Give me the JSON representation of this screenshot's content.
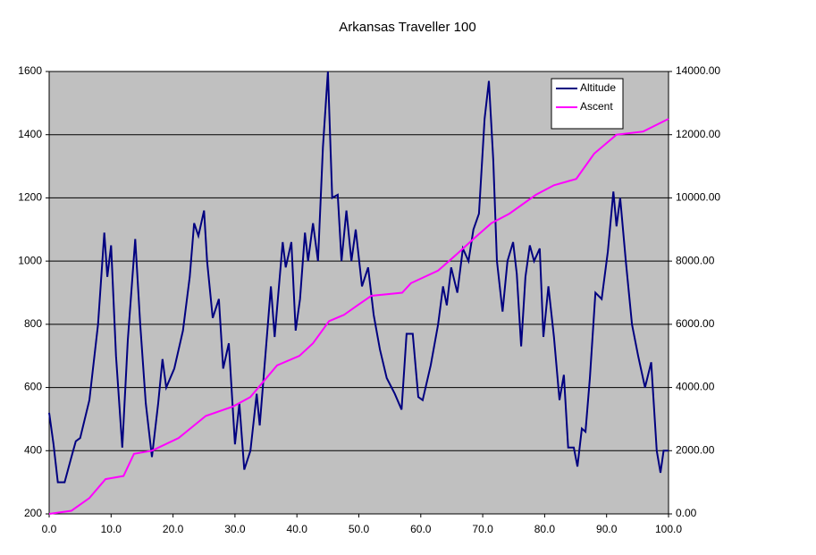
{
  "chart_data": {
    "type": "line",
    "title": "Arkansas Traveller 100",
    "xlim": [
      0,
      100
    ],
    "xticks": [
      {
        "value": 0,
        "label": "0.0"
      },
      {
        "value": 10,
        "label": "10.0"
      },
      {
        "value": 20,
        "label": "20.0"
      },
      {
        "value": 30,
        "label": "30.0"
      },
      {
        "value": 40,
        "label": "40.0"
      },
      {
        "value": 50,
        "label": "50.0"
      },
      {
        "value": 60,
        "label": "60.0"
      },
      {
        "value": 70,
        "label": "70.0"
      },
      {
        "value": 80,
        "label": "80.0"
      },
      {
        "value": 90,
        "label": "90.0"
      },
      {
        "value": 100,
        "label": "100.0"
      }
    ],
    "ylim": [
      200,
      1600
    ],
    "yticks": [
      200,
      400,
      600,
      800,
      1000,
      1200,
      1400,
      1600
    ],
    "y2lim": [
      0,
      14000
    ],
    "y2ticks": [
      {
        "value": 0,
        "label": "0.00"
      },
      {
        "value": 2000,
        "label": "2000.00"
      },
      {
        "value": 4000,
        "label": "4000.00"
      },
      {
        "value": 6000,
        "label": "6000.00"
      },
      {
        "value": 8000,
        "label": "8000.00"
      },
      {
        "value": 10000,
        "label": "10000.00"
      },
      {
        "value": 12000,
        "label": "12000.00"
      },
      {
        "value": 14000,
        "label": "14000.00"
      }
    ],
    "grid": true,
    "legend": "top-right",
    "series": [
      {
        "name": "Altitude",
        "color": "#000080",
        "x": [
          0,
          0.7,
          1.4,
          2.5,
          3.6,
          4.3,
          5,
          6.5,
          7.9,
          8.9,
          9.4,
          10,
          10.8,
          11.8,
          12.7,
          13.9,
          14.7,
          15.6,
          16.6,
          17.6,
          18.3,
          18.9,
          20.2,
          21.6,
          22.7,
          23.4,
          24.1,
          25,
          25.5,
          26.4,
          27.4,
          28.1,
          29,
          30,
          30.7,
          31.5,
          32.5,
          33.5,
          34,
          34.9,
          35.8,
          36.4,
          37.7,
          38.2,
          39.1,
          39.8,
          40.5,
          41.3,
          41.8,
          42.6,
          43.4,
          44.2,
          45,
          45.7,
          46.6,
          47.2,
          48,
          48.8,
          49.5,
          50.5,
          51.5,
          52.4,
          53.4,
          54.5,
          55.8,
          56.9,
          57.7,
          58.7,
          59.6,
          60.3,
          61.6,
          62.8,
          63.6,
          64.2,
          64.9,
          65.9,
          66.8,
          67.7,
          68.5,
          69.4,
          70.3,
          71,
          71.7,
          72.3,
          73.2,
          74,
          74.9,
          75.5,
          76.2,
          76.9,
          77.6,
          78.3,
          79.2,
          79.8,
          80.6,
          81.5,
          82.4,
          83.1,
          83.8,
          84.7,
          85.3,
          86,
          86.6,
          87.3,
          88.2,
          89.2,
          90.2,
          91.1,
          91.6,
          92.2,
          93.1,
          94.1,
          95.1,
          96.2,
          97.2,
          98.1,
          98.7,
          99.2,
          100
        ],
        "values": [
          520,
          420,
          300,
          300,
          380,
          430,
          440,
          560,
          800,
          1090,
          950,
          1050,
          700,
          410,
          750,
          1070,
          800,
          550,
          380,
          550,
          690,
          600,
          660,
          780,
          950,
          1120,
          1080,
          1160,
          1000,
          820,
          880,
          660,
          740,
          420,
          550,
          340,
          400,
          580,
          480,
          700,
          920,
          760,
          1060,
          980,
          1060,
          780,
          880,
          1090,
          1000,
          1120,
          1000,
          1360,
          1600,
          1200,
          1210,
          1000,
          1160,
          1000,
          1100,
          920,
          980,
          830,
          720,
          630,
          580,
          530,
          770,
          770,
          570,
          560,
          670,
          800,
          920,
          860,
          980,
          900,
          1040,
          1000,
          1100,
          1150,
          1450,
          1570,
          1320,
          1000,
          840,
          1000,
          1060,
          960,
          730,
          950,
          1050,
          1000,
          1040,
          760,
          920,
          760,
          560,
          640,
          410,
          410,
          350,
          470,
          460,
          630,
          900,
          880,
          1030,
          1220,
          1110,
          1200,
          1000,
          800,
          700,
          600,
          680,
          400,
          330,
          400,
          400
        ]
      },
      {
        "name": "Ascent",
        "color": "#ff00ff",
        "axis": "y2",
        "x": [
          0,
          3.6,
          6.5,
          9.1,
          12,
          13.7,
          16.6,
          20.9,
          25.3,
          29.7,
          32.5,
          36.8,
          40.4,
          42.6,
          45.2,
          47.6,
          49.8,
          52,
          57,
          58.4,
          62.8,
          65.7,
          68.5,
          71.4,
          74.3,
          78.6,
          81.5,
          85.1,
          88,
          91.6,
          95.9,
          100
        ],
        "values": [
          0,
          100,
          500,
          1100,
          1200,
          1900,
          2000,
          2400,
          3100,
          3400,
          3700,
          4700,
          5000,
          5400,
          6100,
          6300,
          6600,
          6900,
          7000,
          7300,
          7700,
          8200,
          8700,
          9200,
          9500,
          10100,
          10400,
          10600,
          11400,
          12000,
          12100,
          12500
        ]
      }
    ]
  }
}
